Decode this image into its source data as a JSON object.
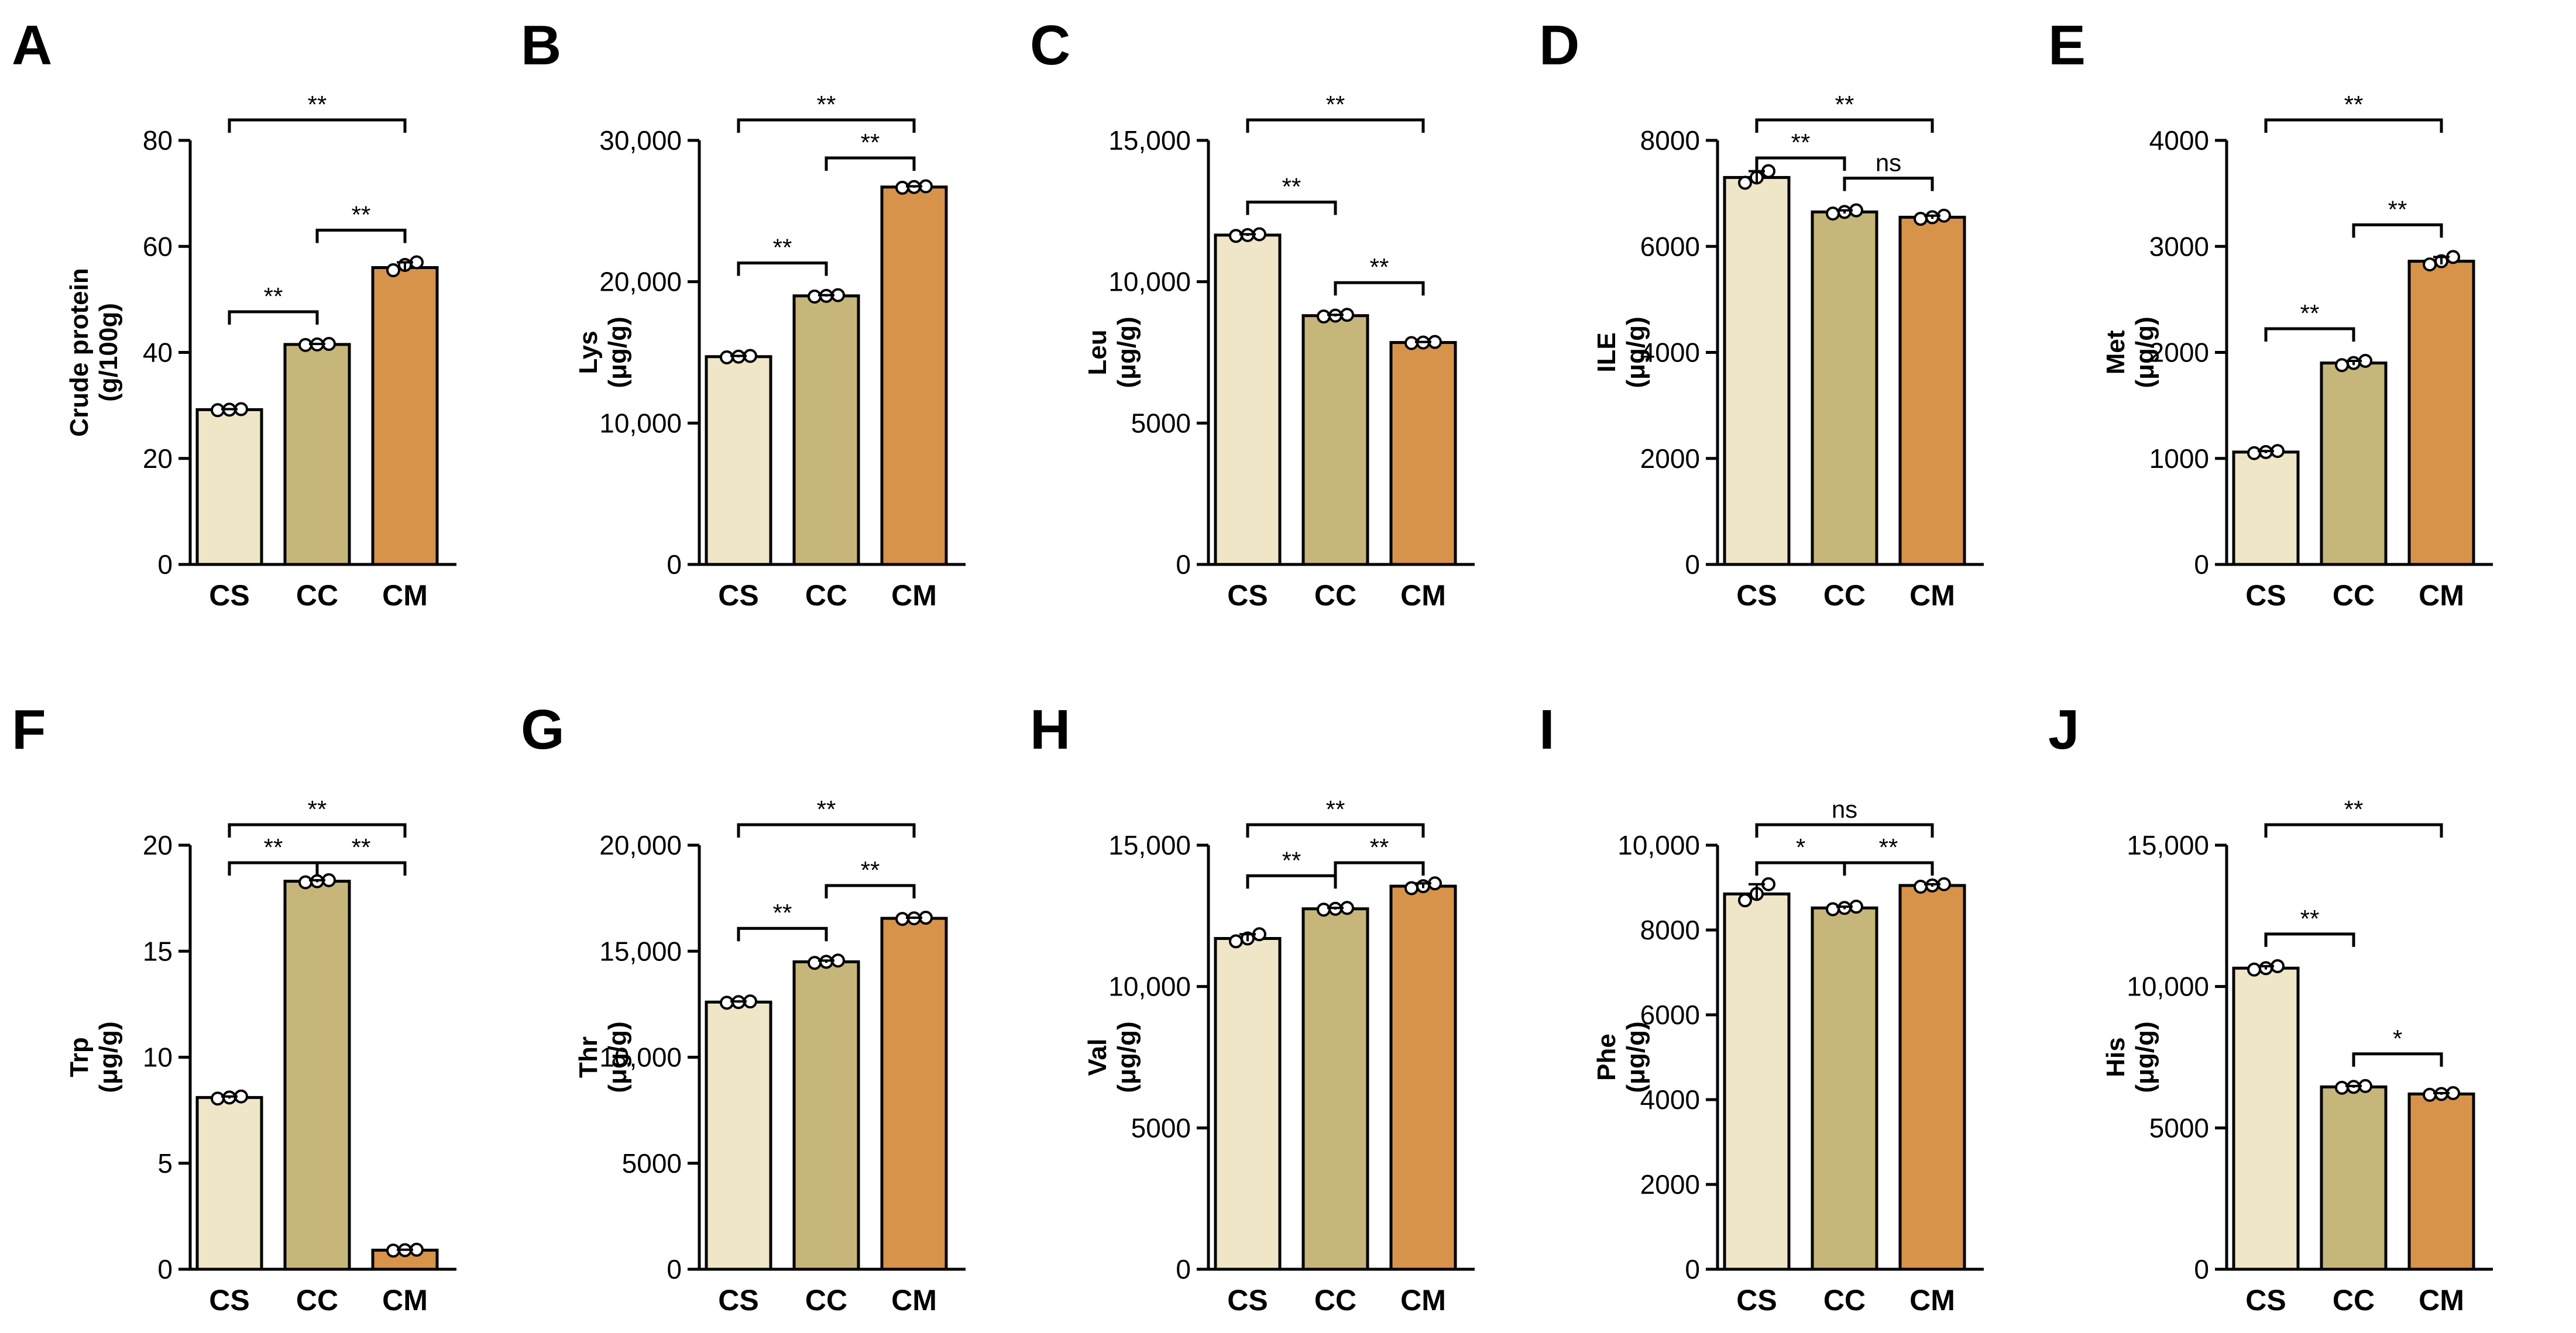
{
  "figure": {
    "colors": {
      "CS": "#EFE6C8",
      "CC": "#C7B67A",
      "CM": "#D8934B",
      "stroke": "#000000"
    }
  },
  "chart_data": [
    {
      "letter": "A",
      "type": "bar",
      "ylabel": [
        "Crude protein",
        "(g/100g)"
      ],
      "categories": [
        "CS",
        "CC",
        "CM"
      ],
      "values": [
        29.2,
        41.5,
        56.0
      ],
      "points": [
        [
          29.1,
          29.2,
          29.3
        ],
        [
          41.4,
          41.5,
          41.6
        ],
        [
          55.5,
          56.5,
          57.0
        ]
      ],
      "ylim": [
        0,
        80
      ],
      "yticks": [
        0,
        20,
        40,
        60,
        80
      ],
      "tick_labels": [
        "0",
        "20",
        "40",
        "60",
        "80"
      ],
      "sig": [
        {
          "from": 0,
          "to": 1,
          "label": "**",
          "level": 1
        },
        {
          "from": 1,
          "to": 2,
          "label": "**",
          "level": 2
        },
        {
          "from": 0,
          "to": 2,
          "label": "**",
          "level": 3
        }
      ]
    },
    {
      "letter": "B",
      "type": "bar",
      "ylabel": [
        "Lys",
        "(μg/g)"
      ],
      "categories": [
        "CS",
        "CC",
        "CM"
      ],
      "values": [
        14700,
        19000,
        26700
      ],
      "points": [
        [
          14650,
          14700,
          14750
        ],
        [
          18950,
          19000,
          19050
        ],
        [
          26650,
          26700,
          26750
        ]
      ],
      "ylim": [
        0,
        30000
      ],
      "yticks": [
        0,
        10000,
        20000,
        30000
      ],
      "tick_labels": [
        "0",
        "10,000",
        "20,000",
        "30,000"
      ],
      "sig": [
        {
          "from": 0,
          "to": 1,
          "label": "**",
          "level": 1
        },
        {
          "from": 1,
          "to": 2,
          "label": "**",
          "level": 2
        },
        {
          "from": 0,
          "to": 2,
          "label": "**",
          "level": 3
        }
      ]
    },
    {
      "letter": "C",
      "type": "bar",
      "ylabel": [
        "Leu",
        "(μg/g)"
      ],
      "categories": [
        "CS",
        "CC",
        "CM"
      ],
      "values": [
        11650,
        8800,
        7850
      ],
      "points": [
        [
          11620,
          11650,
          11680
        ],
        [
          8770,
          8800,
          8830
        ],
        [
          7830,
          7850,
          7870
        ]
      ],
      "ylim": [
        0,
        15000
      ],
      "yticks": [
        0,
        5000,
        10000,
        15000
      ],
      "tick_labels": [
        "0",
        "5000",
        "10,000",
        "15,000"
      ],
      "sig": [
        {
          "from": 0,
          "to": 1,
          "label": "**",
          "level": 1
        },
        {
          "from": 1,
          "to": 2,
          "label": "**",
          "level": 2
        },
        {
          "from": 0,
          "to": 2,
          "label": "**",
          "level": 3
        }
      ]
    },
    {
      "letter": "D",
      "type": "bar",
      "ylabel": [
        "ILE",
        "(μg/g)"
      ],
      "categories": [
        "CS",
        "CC",
        "CM"
      ],
      "values": [
        7300,
        6650,
        6550
      ],
      "points": [
        [
          7200,
          7300,
          7420
        ],
        [
          6620,
          6650,
          6680
        ],
        [
          6520,
          6550,
          6580
        ]
      ],
      "ylim": [
        0,
        8000
      ],
      "yticks": [
        0,
        2000,
        4000,
        6000,
        8000
      ],
      "tick_labels": [
        "0",
        "2000",
        "4000",
        "6000",
        "8000"
      ],
      "sig": [
        {
          "from": 0,
          "to": 1,
          "label": "**",
          "level": 1
        },
        {
          "from": 1,
          "to": 2,
          "label": "ns",
          "level": 2
        },
        {
          "from": 0,
          "to": 2,
          "label": "**",
          "level": 3
        }
      ]
    },
    {
      "letter": "E",
      "type": "bar",
      "ylabel": [
        "Met",
        "(μg/g)"
      ],
      "categories": [
        "CS",
        "CC",
        "CM"
      ],
      "values": [
        1060,
        1900,
        2860
      ],
      "points": [
        [
          1050,
          1060,
          1070
        ],
        [
          1880,
          1900,
          1920
        ],
        [
          2830,
          2860,
          2900
        ]
      ],
      "ylim": [
        0,
        4000
      ],
      "yticks": [
        0,
        1000,
        2000,
        3000,
        4000
      ],
      "tick_labels": [
        "0",
        "1000",
        "2000",
        "3000",
        "4000"
      ],
      "sig": [
        {
          "from": 0,
          "to": 1,
          "label": "**",
          "level": 1
        },
        {
          "from": 1,
          "to": 2,
          "label": "**",
          "level": 2
        },
        {
          "from": 0,
          "to": 2,
          "label": "**",
          "level": 3
        }
      ]
    },
    {
      "letter": "F",
      "type": "bar",
      "ylabel": [
        "Trp",
        "(μg/g)"
      ],
      "categories": [
        "CS",
        "CC",
        "CM"
      ],
      "values": [
        8.1,
        18.3,
        0.9
      ],
      "points": [
        [
          8.05,
          8.1,
          8.15
        ],
        [
          18.25,
          18.3,
          18.35
        ],
        [
          0.88,
          0.9,
          0.92
        ]
      ],
      "ylim": [
        0,
        20
      ],
      "yticks": [
        0,
        5,
        10,
        15,
        20
      ],
      "tick_labels": [
        "0",
        "5",
        "10",
        "15",
        "20"
      ],
      "sig": [
        {
          "from": 0,
          "to": 1,
          "label": "**",
          "level": 1
        },
        {
          "from": 1,
          "to": 2,
          "label": "**",
          "level": 2
        },
        {
          "from": 0,
          "to": 2,
          "label": "**",
          "level": 3
        }
      ]
    },
    {
      "letter": "G",
      "type": "bar",
      "ylabel": [
        "Thr",
        "(μg/g)"
      ],
      "categories": [
        "CS",
        "CC",
        "CM"
      ],
      "values": [
        12600,
        14500,
        16550
      ],
      "points": [
        [
          12570,
          12600,
          12630
        ],
        [
          14450,
          14500,
          14560
        ],
        [
          16520,
          16550,
          16580
        ]
      ],
      "ylim": [
        0,
        20000
      ],
      "yticks": [
        0,
        5000,
        10000,
        15000,
        20000
      ],
      "tick_labels": [
        "0",
        "5000",
        "10,000",
        "15,000",
        "20,000"
      ],
      "sig": [
        {
          "from": 0,
          "to": 1,
          "label": "**",
          "level": 1
        },
        {
          "from": 1,
          "to": 2,
          "label": "**",
          "level": 2
        },
        {
          "from": 0,
          "to": 2,
          "label": "**",
          "level": 3
        }
      ]
    },
    {
      "letter": "H",
      "type": "bar",
      "ylabel": [
        "Val",
        "(μg/g)"
      ],
      "categories": [
        "CS",
        "CC",
        "CM"
      ],
      "values": [
        11700,
        12750,
        13550
      ],
      "points": [
        [
          11600,
          11700,
          11850
        ],
        [
          12720,
          12750,
          12780
        ],
        [
          13480,
          13550,
          13650
        ]
      ],
      "ylim": [
        0,
        15000
      ],
      "yticks": [
        0,
        5000,
        10000,
        15000
      ],
      "tick_labels": [
        "0",
        "5000",
        "10,000",
        "15,000"
      ],
      "sig": [
        {
          "from": 0,
          "to": 1,
          "label": "**",
          "level": 1
        },
        {
          "from": 1,
          "to": 2,
          "label": "**",
          "level": 2
        },
        {
          "from": 0,
          "to": 2,
          "label": "**",
          "level": 3
        }
      ]
    },
    {
      "letter": "I",
      "type": "bar",
      "ylabel": [
        "Phe",
        "(μg/g)"
      ],
      "categories": [
        "CS",
        "CC",
        "CM"
      ],
      "values": [
        8850,
        8520,
        9050
      ],
      "points": [
        [
          8700,
          8850,
          9080
        ],
        [
          8490,
          8520,
          8550
        ],
        [
          9020,
          9050,
          9080
        ]
      ],
      "ylim": [
        0,
        10000
      ],
      "yticks": [
        0,
        2000,
        4000,
        6000,
        8000,
        10000
      ],
      "tick_labels": [
        "0",
        "2000",
        "4000",
        "6000",
        "8000",
        "10,000"
      ],
      "sig": [
        {
          "from": 0,
          "to": 1,
          "label": "*",
          "level": 1
        },
        {
          "from": 1,
          "to": 2,
          "label": "**",
          "level": 2
        },
        {
          "from": 0,
          "to": 2,
          "label": "ns",
          "level": 3
        }
      ]
    },
    {
      "letter": "J",
      "type": "bar",
      "ylabel": [
        "His",
        "(μg/g)"
      ],
      "categories": [
        "CS",
        "CC",
        "CM"
      ],
      "values": [
        10650,
        6450,
        6200
      ],
      "points": [
        [
          10600,
          10650,
          10720
        ],
        [
          6420,
          6450,
          6480
        ],
        [
          6170,
          6200,
          6230
        ]
      ],
      "ylim": [
        0,
        15000
      ],
      "yticks": [
        0,
        5000,
        10000,
        15000
      ],
      "tick_labels": [
        "0",
        "5000",
        "10,000",
        "15,000"
      ],
      "sig": [
        {
          "from": 0,
          "to": 1,
          "label": "**",
          "level": 1
        },
        {
          "from": 1,
          "to": 2,
          "label": "*",
          "level": 2
        },
        {
          "from": 0,
          "to": 2,
          "label": "**",
          "level": 3
        }
      ]
    }
  ]
}
